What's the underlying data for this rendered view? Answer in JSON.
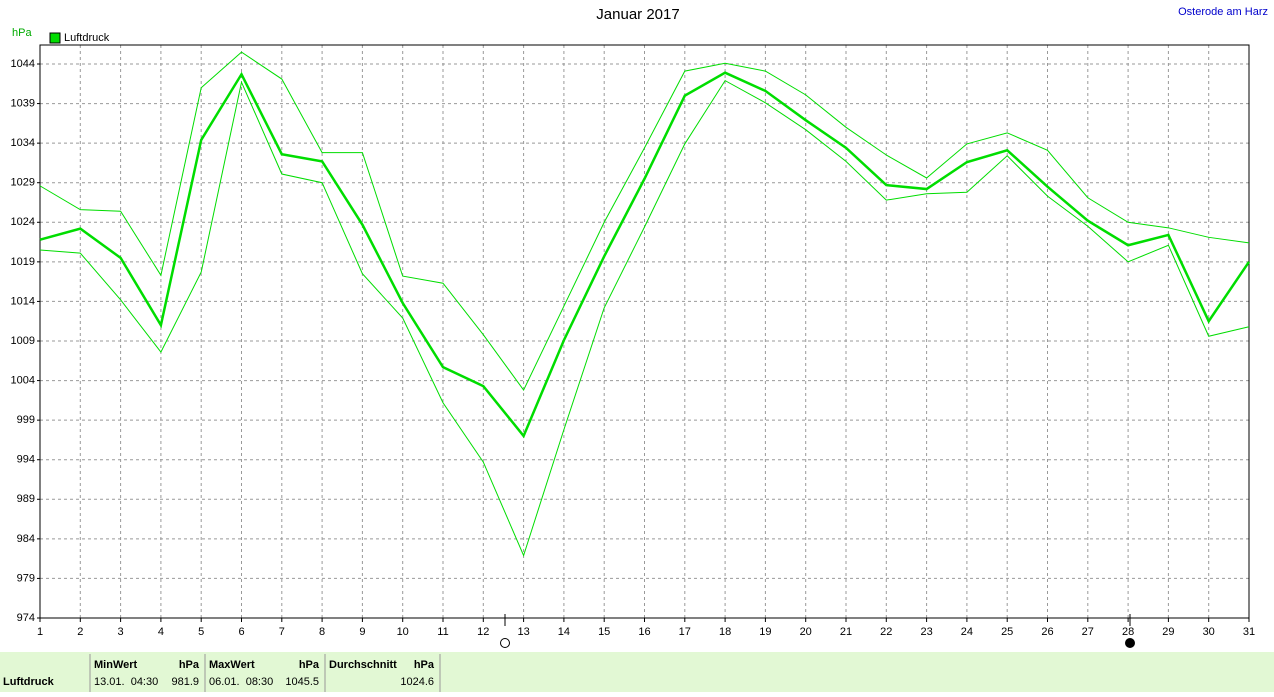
{
  "chart_data": {
    "type": "line",
    "title": "Januar 2017",
    "location": "Osterode am Harz",
    "y_label": "hPa",
    "x": [
      1,
      2,
      3,
      4,
      5,
      6,
      7,
      8,
      9,
      10,
      11,
      12,
      13,
      14,
      15,
      16,
      17,
      18,
      19,
      20,
      21,
      22,
      23,
      24,
      25,
      26,
      27,
      28,
      29,
      30,
      31
    ],
    "xlim": [
      1,
      31
    ],
    "xticks": [
      1,
      2,
      3,
      4,
      5,
      6,
      7,
      8,
      9,
      10,
      11,
      12,
      13,
      14,
      15,
      16,
      17,
      18,
      19,
      20,
      21,
      22,
      23,
      24,
      25,
      26,
      27,
      28,
      29,
      30,
      31
    ],
    "ylim": [
      974,
      1046.4
    ],
    "yticks": [
      974,
      979,
      984,
      989,
      994,
      999,
      1004,
      1009,
      1014,
      1019,
      1024,
      1029,
      1034,
      1039,
      1044
    ],
    "grid": true,
    "series": [
      {
        "name": "Luftdruck",
        "color": "#00dd00",
        "values": [
          1021.8,
          1023.2,
          1019.5,
          1011.0,
          1034.4,
          1042.7,
          1032.6,
          1031.7,
          1023.7,
          1013.8,
          1005.7,
          1003.3,
          997.0,
          1009.1,
          1019.7,
          1029.5,
          1040.0,
          1042.9,
          1040.6,
          1036.9,
          1033.4,
          1028.7,
          1028.2,
          1031.6,
          1033.1,
          1028.5,
          1024.2,
          1021.1,
          1022.4,
          1011.5,
          1019.0
        ]
      },
      {
        "color": "#00dd00",
        "values": [
          1028.6,
          1025.6,
          1025.4,
          1017.3,
          1041.0,
          1045.5,
          1042.1,
          1032.8,
          1032.8,
          1017.2,
          1016.3,
          1009.8,
          1002.8,
          1013.4,
          1024.0,
          1033.4,
          1043.1,
          1044.1,
          1043.1,
          1040.1,
          1036.0,
          1032.5,
          1029.6,
          1033.9,
          1035.3,
          1033.1,
          1027.1,
          1024.0,
          1023.3,
          1022.1,
          1021.4
        ]
      },
      {
        "color": "#00dd00",
        "values": [
          1020.5,
          1020.1,
          1014.2,
          1007.6,
          1017.7,
          1041.7,
          1030.1,
          1029.0,
          1017.5,
          1011.9,
          1001.2,
          993.7,
          981.9,
          997.8,
          1013.2,
          1023.4,
          1033.9,
          1041.9,
          1039.1,
          1035.7,
          1031.7,
          1026.8,
          1027.6,
          1027.8,
          1032.4,
          1027.3,
          1023.5,
          1019.0,
          1021.1,
          1009.6,
          1010.8
        ]
      }
    ]
  },
  "summary": {
    "label": "Luftdruck",
    "columns": [
      {
        "header": "MinWert",
        "unit": "hPa",
        "date": "13.01.  04:30",
        "value": "981.9"
      },
      {
        "header": "MaxWert",
        "unit": "hPa",
        "date": "06.01.  08:30",
        "value": "1045.5"
      },
      {
        "header": "Durchschnitt",
        "unit": "hPa",
        "value": "1024.6"
      }
    ]
  }
}
